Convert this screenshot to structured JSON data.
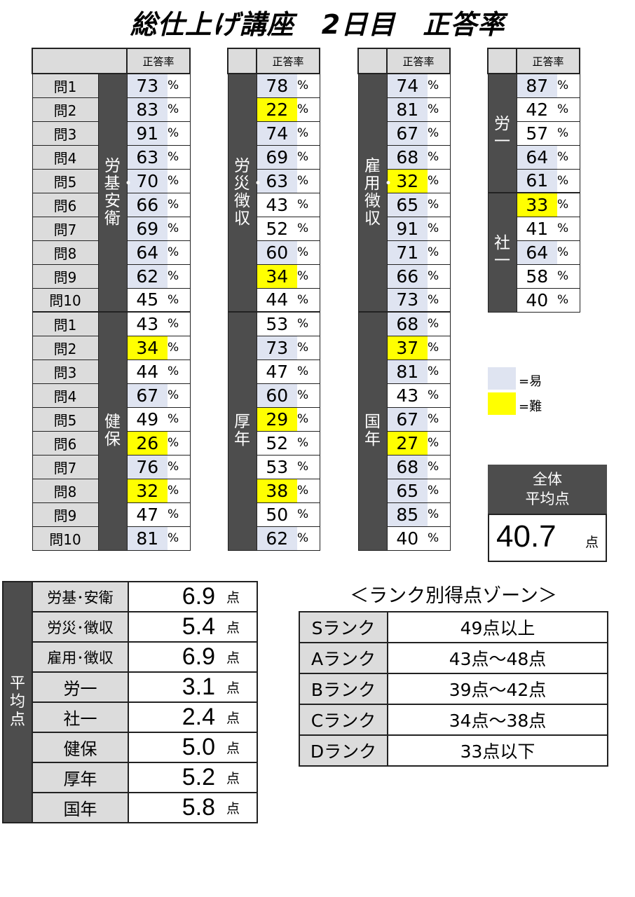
{
  "title": "総仕上げ講座　2日目　正答率",
  "header_label": "正答率",
  "percent_unit": "%",
  "colors": {
    "easy": "#dfe4f1",
    "hard": "#ffff00",
    "header_dark": "#4d4d4d",
    "label_gray": "#dcdcdc"
  },
  "tables": [
    {
      "groups": [
        {
          "subject": "労基・安衛",
          "rows": [
            {
              "q": "問1",
              "v": "73",
              "lvl": "easy"
            },
            {
              "q": "問2",
              "v": "83",
              "lvl": "easy"
            },
            {
              "q": "問3",
              "v": "91",
              "lvl": "easy"
            },
            {
              "q": "問4",
              "v": "63",
              "lvl": "easy"
            },
            {
              "q": "問5",
              "v": "70",
              "lvl": "easy"
            },
            {
              "q": "問6",
              "v": "66",
              "lvl": "easy"
            },
            {
              "q": "問7",
              "v": "69",
              "lvl": "easy"
            },
            {
              "q": "問8",
              "v": "64",
              "lvl": "easy"
            },
            {
              "q": "問9",
              "v": "62",
              "lvl": "easy"
            },
            {
              "q": "問10",
              "v": "45",
              "lvl": "plain"
            }
          ]
        },
        {
          "subject": "健保",
          "rows": [
            {
              "q": "問1",
              "v": "43",
              "lvl": "plain"
            },
            {
              "q": "問2",
              "v": "34",
              "lvl": "hard"
            },
            {
              "q": "問3",
              "v": "44",
              "lvl": "plain"
            },
            {
              "q": "問4",
              "v": "67",
              "lvl": "easy"
            },
            {
              "q": "問5",
              "v": "49",
              "lvl": "plain"
            },
            {
              "q": "問6",
              "v": "26",
              "lvl": "hard"
            },
            {
              "q": "問7",
              "v": "76",
              "lvl": "easy"
            },
            {
              "q": "問8",
              "v": "32",
              "lvl": "hard"
            },
            {
              "q": "問9",
              "v": "47",
              "lvl": "plain"
            },
            {
              "q": "問10",
              "v": "81",
              "lvl": "easy"
            }
          ]
        }
      ]
    },
    {
      "groups": [
        {
          "subject": "労災・徴収",
          "rows": [
            {
              "v": "78",
              "lvl": "easy"
            },
            {
              "v": "22",
              "lvl": "hard"
            },
            {
              "v": "74",
              "lvl": "easy"
            },
            {
              "v": "69",
              "lvl": "easy"
            },
            {
              "v": "63",
              "lvl": "easy"
            },
            {
              "v": "43",
              "lvl": "plain"
            },
            {
              "v": "52",
              "lvl": "plain"
            },
            {
              "v": "60",
              "lvl": "easy"
            },
            {
              "v": "34",
              "lvl": "hard"
            },
            {
              "v": "44",
              "lvl": "plain"
            }
          ]
        },
        {
          "subject": "厚年",
          "rows": [
            {
              "v": "53",
              "lvl": "plain"
            },
            {
              "v": "73",
              "lvl": "easy"
            },
            {
              "v": "47",
              "lvl": "plain"
            },
            {
              "v": "60",
              "lvl": "easy"
            },
            {
              "v": "29",
              "lvl": "hard"
            },
            {
              "v": "52",
              "lvl": "plain"
            },
            {
              "v": "53",
              "lvl": "plain"
            },
            {
              "v": "38",
              "lvl": "hard"
            },
            {
              "v": "50",
              "lvl": "plain"
            },
            {
              "v": "62",
              "lvl": "easy"
            }
          ]
        }
      ]
    },
    {
      "groups": [
        {
          "subject": "雇用・徴収",
          "rows": [
            {
              "v": "74",
              "lvl": "easy"
            },
            {
              "v": "81",
              "lvl": "easy"
            },
            {
              "v": "67",
              "lvl": "easy"
            },
            {
              "v": "68",
              "lvl": "easy"
            },
            {
              "v": "32",
              "lvl": "hard"
            },
            {
              "v": "65",
              "lvl": "easy"
            },
            {
              "v": "91",
              "lvl": "easy"
            },
            {
              "v": "71",
              "lvl": "easy"
            },
            {
              "v": "66",
              "lvl": "easy"
            },
            {
              "v": "73",
              "lvl": "easy"
            }
          ]
        },
        {
          "subject": "国年",
          "rows": [
            {
              "v": "68",
              "lvl": "easy"
            },
            {
              "v": "37",
              "lvl": "hard"
            },
            {
              "v": "81",
              "lvl": "easy"
            },
            {
              "v": "43",
              "lvl": "plain"
            },
            {
              "v": "67",
              "lvl": "easy"
            },
            {
              "v": "27",
              "lvl": "hard"
            },
            {
              "v": "68",
              "lvl": "easy"
            },
            {
              "v": "65",
              "lvl": "easy"
            },
            {
              "v": "85",
              "lvl": "easy"
            },
            {
              "v": "40",
              "lvl": "plain"
            }
          ]
        }
      ]
    },
    {
      "groups": [
        {
          "subject": "労一",
          "rows": [
            {
              "v": "87",
              "lvl": "easy"
            },
            {
              "v": "42",
              "lvl": "plain"
            },
            {
              "v": "57",
              "lvl": "plain"
            },
            {
              "v": "64",
              "lvl": "easy"
            },
            {
              "v": "61",
              "lvl": "easy"
            }
          ]
        },
        {
          "subject": "社一",
          "rows": [
            {
              "v": "33",
              "lvl": "hard"
            },
            {
              "v": "41",
              "lvl": "plain"
            },
            {
              "v": "64",
              "lvl": "easy"
            },
            {
              "v": "58",
              "lvl": "plain"
            },
            {
              "v": "40",
              "lvl": "plain"
            }
          ]
        }
      ]
    }
  ],
  "legend": [
    {
      "label": "=易",
      "lvl": "easy"
    },
    {
      "label": "=難",
      "lvl": "hard"
    }
  ],
  "overall": {
    "label_line1": "全体",
    "label_line2": "平均点",
    "value": "40.7",
    "unit": "点"
  },
  "averages": {
    "vertical_label": "平均点",
    "unit": "点",
    "rows": [
      {
        "name": "労基･安衛",
        "score": "6.9"
      },
      {
        "name": "労災･徴収",
        "score": "5.4"
      },
      {
        "name": "雇用･徴収",
        "score": "6.9"
      },
      {
        "name": "労一",
        "score": "3.1"
      },
      {
        "name": "社一",
        "score": "2.4"
      },
      {
        "name": "健保",
        "score": "5.0"
      },
      {
        "name": "厚年",
        "score": "5.2"
      },
      {
        "name": "国年",
        "score": "5.8"
      }
    ]
  },
  "rank_zone": {
    "title": "＜ランク別得点ゾーン＞",
    "rows": [
      {
        "rank": "Sランク",
        "range": "49点以上"
      },
      {
        "rank": "Aランク",
        "range": "43点～48点"
      },
      {
        "rank": "Bランク",
        "range": "39点～42点"
      },
      {
        "rank": "Cランク",
        "range": "34点～38点"
      },
      {
        "rank": "Dランク",
        "range": "33点以下"
      }
    ]
  }
}
